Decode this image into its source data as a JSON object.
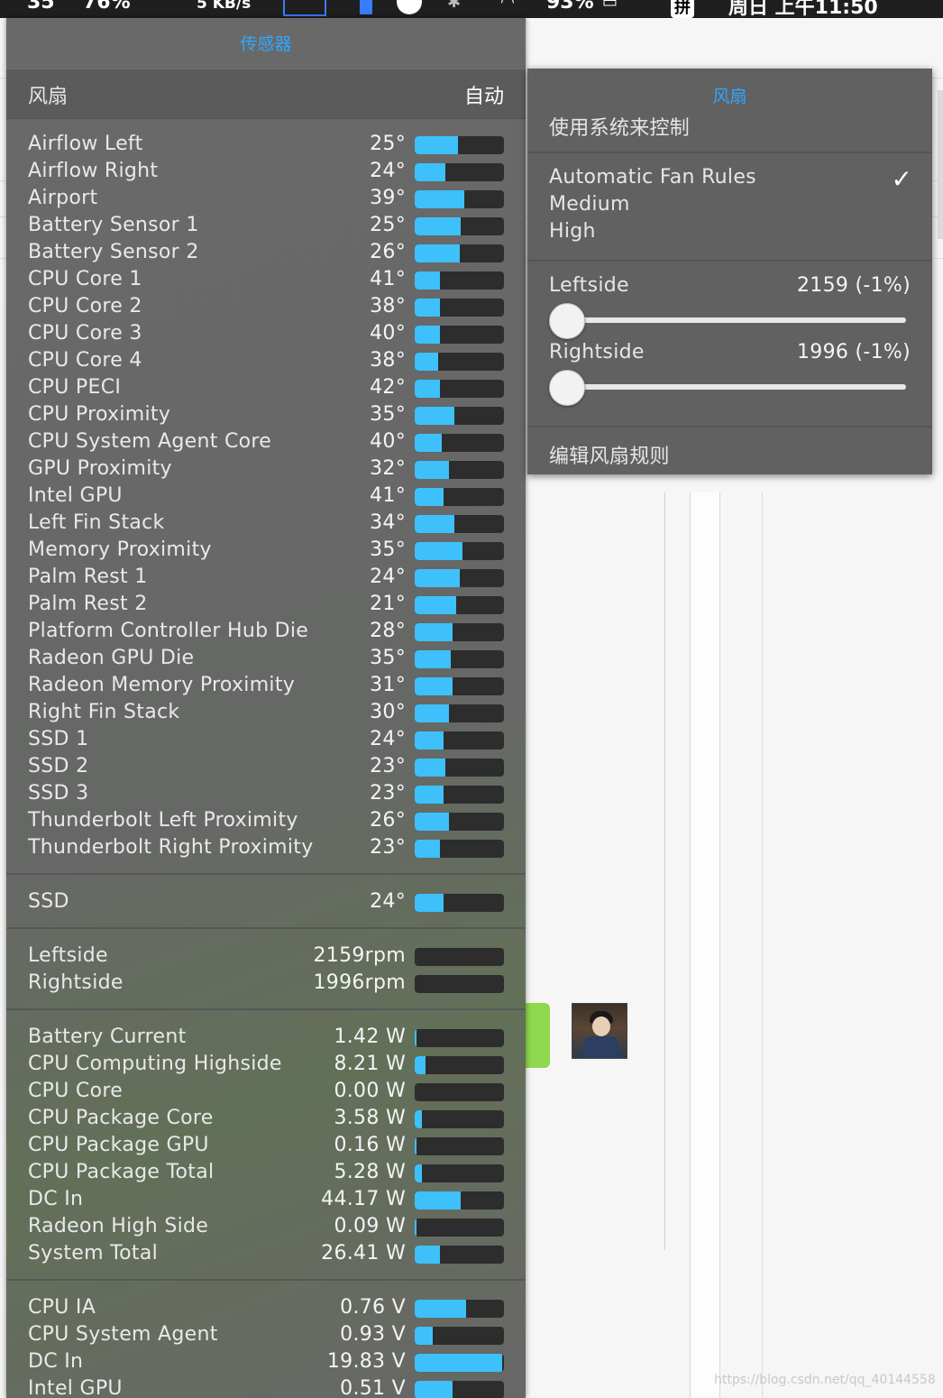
{
  "menubar": {
    "items": [
      "35",
      "76%",
      "5 KB/s",
      "93%",
      "周日 上午11:50"
    ],
    "ime": "拼",
    "icons": [
      "network-meter-icon",
      "memory-icon",
      "circle-icon",
      "bluetooth-icon",
      "wifi-icon",
      "battery-icon"
    ]
  },
  "sensor_panel": {
    "title": "传感器",
    "fan_mode": {
      "label": "风扇",
      "value": "自动"
    },
    "temperatures": [
      {
        "name": "Airflow Left",
        "value": "25°",
        "level": 0.48
      },
      {
        "name": "Airflow Right",
        "value": "24°",
        "level": 0.34
      },
      {
        "name": "Airport",
        "value": "39°",
        "level": 0.56
      },
      {
        "name": "Battery Sensor 1",
        "value": "25°",
        "level": 0.52
      },
      {
        "name": "Battery Sensor 2",
        "value": "26°",
        "level": 0.5
      },
      {
        "name": "CPU Core 1",
        "value": "41°",
        "level": 0.28
      },
      {
        "name": "CPU Core 2",
        "value": "38°",
        "level": 0.28
      },
      {
        "name": "CPU Core 3",
        "value": "40°",
        "level": 0.28
      },
      {
        "name": "CPU Core 4",
        "value": "38°",
        "level": 0.26
      },
      {
        "name": "CPU PECI",
        "value": "42°",
        "level": 0.28
      },
      {
        "name": "CPU Proximity",
        "value": "35°",
        "level": 0.44
      },
      {
        "name": "CPU System Agent Core",
        "value": "40°",
        "level": 0.3
      },
      {
        "name": "GPU Proximity",
        "value": "32°",
        "level": 0.38
      },
      {
        "name": "Intel GPU",
        "value": "41°",
        "level": 0.32
      },
      {
        "name": "Left Fin Stack",
        "value": "34°",
        "level": 0.44
      },
      {
        "name": "Memory Proximity",
        "value": "35°",
        "level": 0.54
      },
      {
        "name": "Palm Rest 1",
        "value": "24°",
        "level": 0.5
      },
      {
        "name": "Palm Rest 2",
        "value": "21°",
        "level": 0.46
      },
      {
        "name": "Platform Controller Hub Die",
        "value": "28°",
        "level": 0.42
      },
      {
        "name": "Radeon GPU Die",
        "value": "35°",
        "level": 0.4
      },
      {
        "name": "Radeon Memory Proximity",
        "value": "31°",
        "level": 0.42
      },
      {
        "name": "Right Fin Stack",
        "value": "30°",
        "level": 0.38
      },
      {
        "name": "SSD 1",
        "value": "24°",
        "level": 0.32
      },
      {
        "name": "SSD 2",
        "value": "23°",
        "level": 0.34
      },
      {
        "name": "SSD 3",
        "value": "23°",
        "level": 0.32
      },
      {
        "name": "Thunderbolt Left Proximity",
        "value": "26°",
        "level": 0.38
      },
      {
        "name": "Thunderbolt Right Proximity",
        "value": "23°",
        "level": 0.28
      }
    ],
    "disk": [
      {
        "name": "SSD",
        "value": "24°",
        "level": 0.32
      }
    ],
    "fans": [
      {
        "name": "Leftside",
        "value": "2159rpm",
        "level": 0.0
      },
      {
        "name": "Rightside",
        "value": "1996rpm",
        "level": 0.0
      }
    ],
    "power": [
      {
        "name": "Battery Current",
        "value": "1.42 W",
        "level": 0.02
      },
      {
        "name": "CPU Computing Highside",
        "value": "8.21 W",
        "level": 0.12
      },
      {
        "name": "CPU Core",
        "value": "0.00 W",
        "level": 0.0
      },
      {
        "name": "CPU Package Core",
        "value": "3.58 W",
        "level": 0.08
      },
      {
        "name": "CPU Package GPU",
        "value": "0.16 W",
        "level": 0.02
      },
      {
        "name": "CPU Package Total",
        "value": "5.28 W",
        "level": 0.08
      },
      {
        "name": "DC In",
        "value": "44.17 W",
        "level": 0.52
      },
      {
        "name": "Radeon High Side",
        "value": "0.09 W",
        "level": 0.02
      },
      {
        "name": "System Total",
        "value": "26.41 W",
        "level": 0.28
      }
    ],
    "voltage": [
      {
        "name": "CPU IA",
        "value": "0.76 V",
        "level": 0.58
      },
      {
        "name": "CPU System Agent",
        "value": "0.93 V",
        "level": 0.2
      },
      {
        "name": "DC In",
        "value": "19.83 V",
        "level": 0.98
      },
      {
        "name": "Intel GPU",
        "value": "0.51 V",
        "level": 0.42
      }
    ]
  },
  "fan_popup": {
    "title": "风扇",
    "system_control": "使用系统来控制",
    "rules": [
      {
        "label": "Automatic Fan Rules",
        "checked": true
      },
      {
        "label": "Medium",
        "checked": false
      },
      {
        "label": "High",
        "checked": false
      }
    ],
    "check_glyph": "✓",
    "leftside": {
      "label": "Leftside",
      "speed": "2159 (-1%)",
      "level": 0.0
    },
    "rightside": {
      "label": "Rightside",
      "speed": "1996 (-1%)",
      "level": 0.0
    },
    "edit_rules": "编辑风扇规则"
  },
  "watermark": "https://blog.csdn.net/qq_40144558"
}
